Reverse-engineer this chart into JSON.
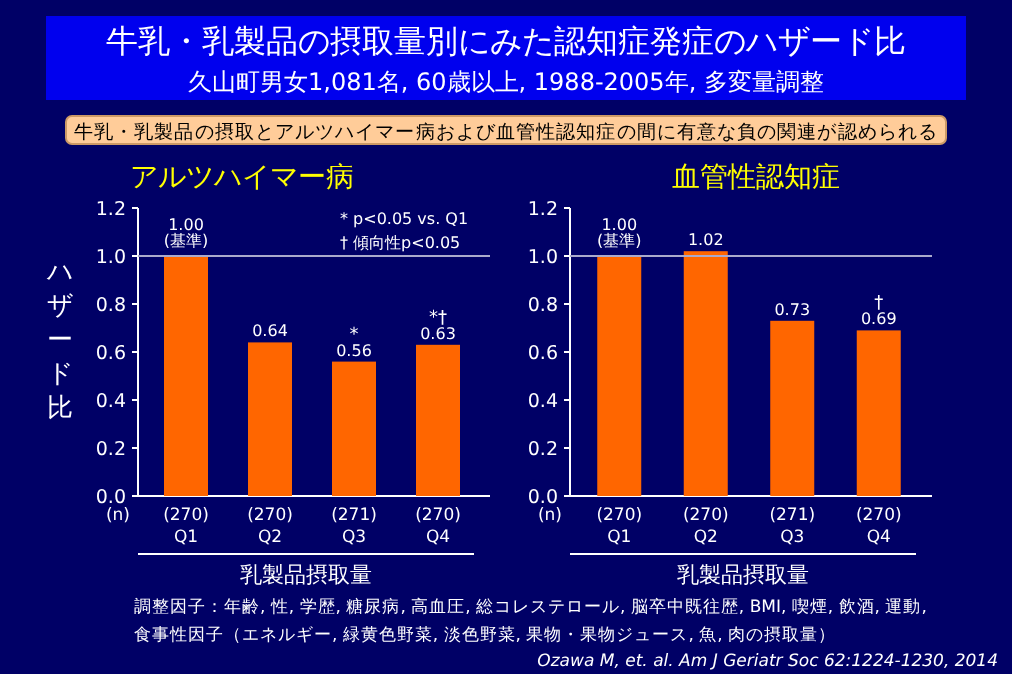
{
  "chart_data": [
    {
      "type": "other",
      "title": "牛乳・乳製品の摂取量別にみた認知症発症のハザード比",
      "subtitle": "久山町男女1,081名, 60歳以上, 1988-2005年, 多変量調整",
      "annotations": [
        "牛乳・乳製品の摂取とアルツハイマー病および血管性認知症の間に有意な負の関連が認められる",
        "調整因子：年齢, 性, 学歴, 糖尿病, 高血圧, 総コレステロール, 脳卒中既往歴, BMI, 喫煙, 飲酒, 運動,",
        "食事性因子（エネルギー, 緑黄色野菜, 淡色野菜, 果物・果物ジュース, 魚, 肉の摂取量）",
        "Ozawa M, et. al. Am J Geriatr Soc 62:1224-1230, 2014"
      ]
    },
    {
      "type": "bar",
      "title": "アルツハイマー病",
      "xlabel": "乳製品摂取量",
      "ylabel": "ハザード比",
      "categories": [
        "(270) Q1",
        "(270) Q2",
        "(271) Q3",
        "(270) Q4"
      ],
      "values": [
        1.0,
        0.64,
        0.56,
        0.63
      ],
      "value_labels": [
        "1.00 (基準)",
        "0.64",
        "0.56",
        "0.63"
      ],
      "color": "#ff6600",
      "ylim": [
        0,
        1.2
      ],
      "yticks": [
        {
          "value": 0,
          "label": "0.0"
        },
        {
          "value": 0.2,
          "label": "0.2"
        },
        {
          "value": 0.4,
          "label": "0.4"
        },
        {
          "value": 0.6,
          "label": "0.6"
        },
        {
          "value": 0.8,
          "label": "0.8"
        },
        {
          "value": 1.0,
          "label": "1.0"
        },
        {
          "value": 1.2,
          "label": "1.2"
        }
      ],
      "ref_lines": [
        {
          "axis": "y",
          "value": 1.0,
          "color": "#aaaacc"
        }
      ],
      "annotations": [
        "(n)",
        "* p<0.05 vs. Q1",
        "† 傾向性p<0.05",
        {
          "text": "*",
          "x": "(271) Q3",
          "y": 0.56
        },
        {
          "text": "*†",
          "x": "(270) Q4",
          "y": 0.63
        }
      ]
    },
    {
      "type": "bar",
      "title": "血管性認知症",
      "xlabel": "乳製品摂取量",
      "categories": [
        "(270) Q1",
        "(270) Q2",
        "(271) Q3",
        "(270) Q4"
      ],
      "values": [
        1.0,
        1.02,
        0.73,
        0.69
      ],
      "value_labels": [
        "1.00 (基準)",
        "1.02",
        "0.73",
        "0.69"
      ],
      "color": "#ff6600",
      "ylim": [
        0,
        1.2
      ],
      "yticks": [
        {
          "value": 0,
          "label": "0.0"
        },
        {
          "value": 0.2,
          "label": "0.2"
        },
        {
          "value": 0.4,
          "label": "0.4"
        },
        {
          "value": 0.6,
          "label": "0.6"
        },
        {
          "value": 0.8,
          "label": "0.8"
        },
        {
          "value": 1.0,
          "label": "1.0"
        },
        {
          "value": 1.2,
          "label": "1.2"
        }
      ],
      "ref_lines": [
        {
          "axis": "y",
          "value": 1.0,
          "color": "#aaaacc"
        }
      ],
      "annotations": [
        "(n)",
        {
          "text": "†",
          "x": "(270) Q4",
          "y": 0.69
        }
      ]
    }
  ]
}
